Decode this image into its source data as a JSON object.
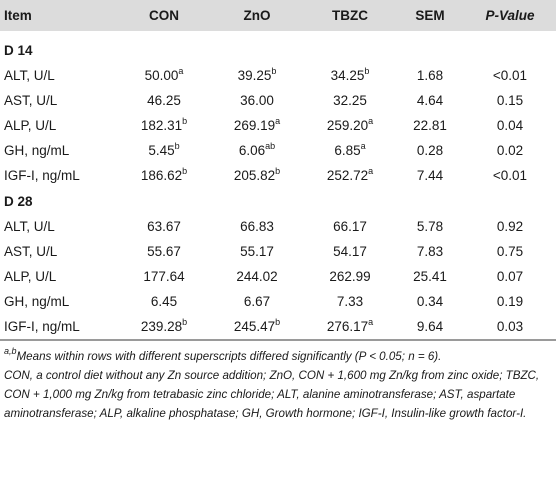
{
  "table": {
    "headers": [
      "Item",
      "CON",
      "ZnO",
      "TBZC",
      "SEM",
      "P-Value"
    ],
    "sections": [
      {
        "label": "D 14",
        "rows": [
          {
            "item": "ALT, U/L",
            "con": "50.00",
            "con_sup": "a",
            "zno": "39.25",
            "zno_sup": "b",
            "tbzc": "34.25",
            "tbzc_sup": "b",
            "sem": "1.68",
            "p": "<0.01"
          },
          {
            "item": "AST, U/L",
            "con": "46.25",
            "con_sup": "",
            "zno": "36.00",
            "zno_sup": "",
            "tbzc": "32.25",
            "tbzc_sup": "",
            "sem": "4.64",
            "p": "0.15"
          },
          {
            "item": "ALP, U/L",
            "con": "182.31",
            "con_sup": "b",
            "zno": "269.19",
            "zno_sup": "a",
            "tbzc": "259.20",
            "tbzc_sup": "a",
            "sem": "22.81",
            "p": "0.04"
          },
          {
            "item": "GH, ng/mL",
            "con": "5.45",
            "con_sup": "b",
            "zno": "6.06",
            "zno_sup": "ab",
            "tbzc": "6.85",
            "tbzc_sup": "a",
            "sem": "0.28",
            "p": "0.02"
          },
          {
            "item": "IGF-I, ng/mL",
            "con": "186.62",
            "con_sup": "b",
            "zno": "205.82",
            "zno_sup": "b",
            "tbzc": "252.72",
            "tbzc_sup": "a",
            "sem": "7.44",
            "p": "<0.01"
          }
        ]
      },
      {
        "label": "D 28",
        "rows": [
          {
            "item": "ALT, U/L",
            "con": "63.67",
            "con_sup": "",
            "zno": "66.83",
            "zno_sup": "",
            "tbzc": "66.17",
            "tbzc_sup": "",
            "sem": "5.78",
            "p": "0.92"
          },
          {
            "item": "AST, U/L",
            "con": "55.67",
            "con_sup": "",
            "zno": "55.17",
            "zno_sup": "",
            "tbzc": "54.17",
            "tbzc_sup": "",
            "sem": "7.83",
            "p": "0.75"
          },
          {
            "item": "ALP, U/L",
            "con": "177.64",
            "con_sup": "",
            "zno": "244.02",
            "zno_sup": "",
            "tbzc": "262.99",
            "tbzc_sup": "",
            "sem": "25.41",
            "p": "0.07"
          },
          {
            "item": "GH, ng/mL",
            "con": "6.45",
            "con_sup": "",
            "zno": "6.67",
            "zno_sup": "",
            "tbzc": "7.33",
            "tbzc_sup": "",
            "sem": "0.34",
            "p": "0.19"
          },
          {
            "item": "IGF-I, ng/mL",
            "con": "239.28",
            "con_sup": "b",
            "zno": "245.47",
            "zno_sup": "b",
            "tbzc": "276.17",
            "tbzc_sup": "a",
            "sem": "9.64",
            "p": "0.03"
          }
        ]
      }
    ]
  },
  "footnote": {
    "sup_mark": "a,b",
    "line1": "Means within rows with different superscripts differed significantly (P < 0.05; n = 6).",
    "line2": "CON, a control diet without any Zn source addition; ZnO, CON + 1,600 mg Zn/kg from zinc oxide; TBZC, CON + 1,000 mg Zn/kg from tetrabasic zinc chloride; ALT, alanine aminotransferase; AST, aspartate aminotransferase; ALP, alkaline phosphatase; GH, Growth hormone; IGF-I, Insulin-like growth factor-I."
  }
}
